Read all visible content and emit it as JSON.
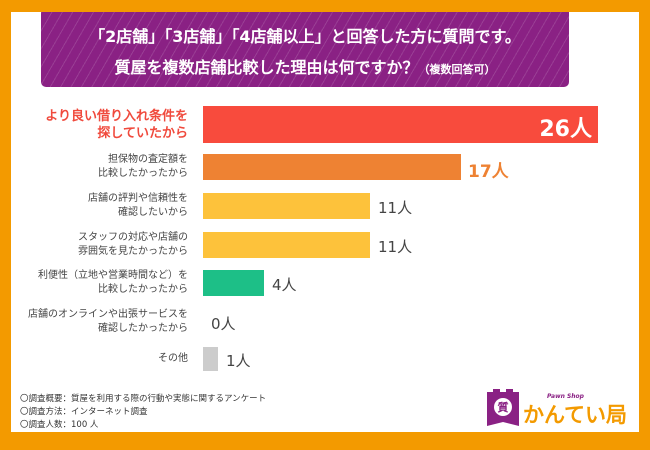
{
  "header": {
    "line1": "「2店舗」「3店舗」「4店舗以上」と回答した方に質問です。",
    "line2": "質屋を複数店舗比較した理由は何ですか？",
    "line2_note": "（複数回答可）"
  },
  "chart_data": {
    "type": "bar",
    "orientation": "horizontal",
    "title": "質屋を複数店舗比較した理由は何ですか？（複数回答可）",
    "unit": "人",
    "categories": [
      [
        "より良い借り入れ条件を",
        "探していたから"
      ],
      [
        "担保物の査定額を",
        "比較したかったから"
      ],
      [
        "店舗の評判や信頼性を",
        "確認したいから"
      ],
      [
        "スタッフの対応や店舗の",
        "雰囲気を見たかったから"
      ],
      [
        "利便性（立地や営業時間など）を",
        "比較したかったから"
      ],
      [
        "店舗のオンラインや出張サービスを",
        "確認したかったから"
      ],
      [
        "その他"
      ]
    ],
    "values": [
      26,
      17,
      11,
      11,
      4,
      0,
      1
    ],
    "value_labels": [
      "26人",
      "17人",
      "11人",
      "11人",
      "4人",
      "0人",
      "1人"
    ],
    "colors": [
      "#f84b3d",
      "#ee8233",
      "#fdc23b",
      "#fdc23b",
      "#1dbf87",
      "#cccccc",
      "#cccccc"
    ],
    "xlim": [
      0,
      26
    ],
    "grid": false
  },
  "notes": [
    "〇調査概要：質屋を利用する際の行動や実態に関するアンケート",
    "〇調査方法：インターネット調査",
    "〇調査人数：100 人"
  ],
  "logo": {
    "tagline": "Pawn Shop",
    "name": "かんてい局",
    "mark": "質",
    "brand_color": "#8a2184",
    "text_color": "#f39a00"
  },
  "colors": {
    "frame": "#f39a00",
    "banner": "#8a2184"
  }
}
